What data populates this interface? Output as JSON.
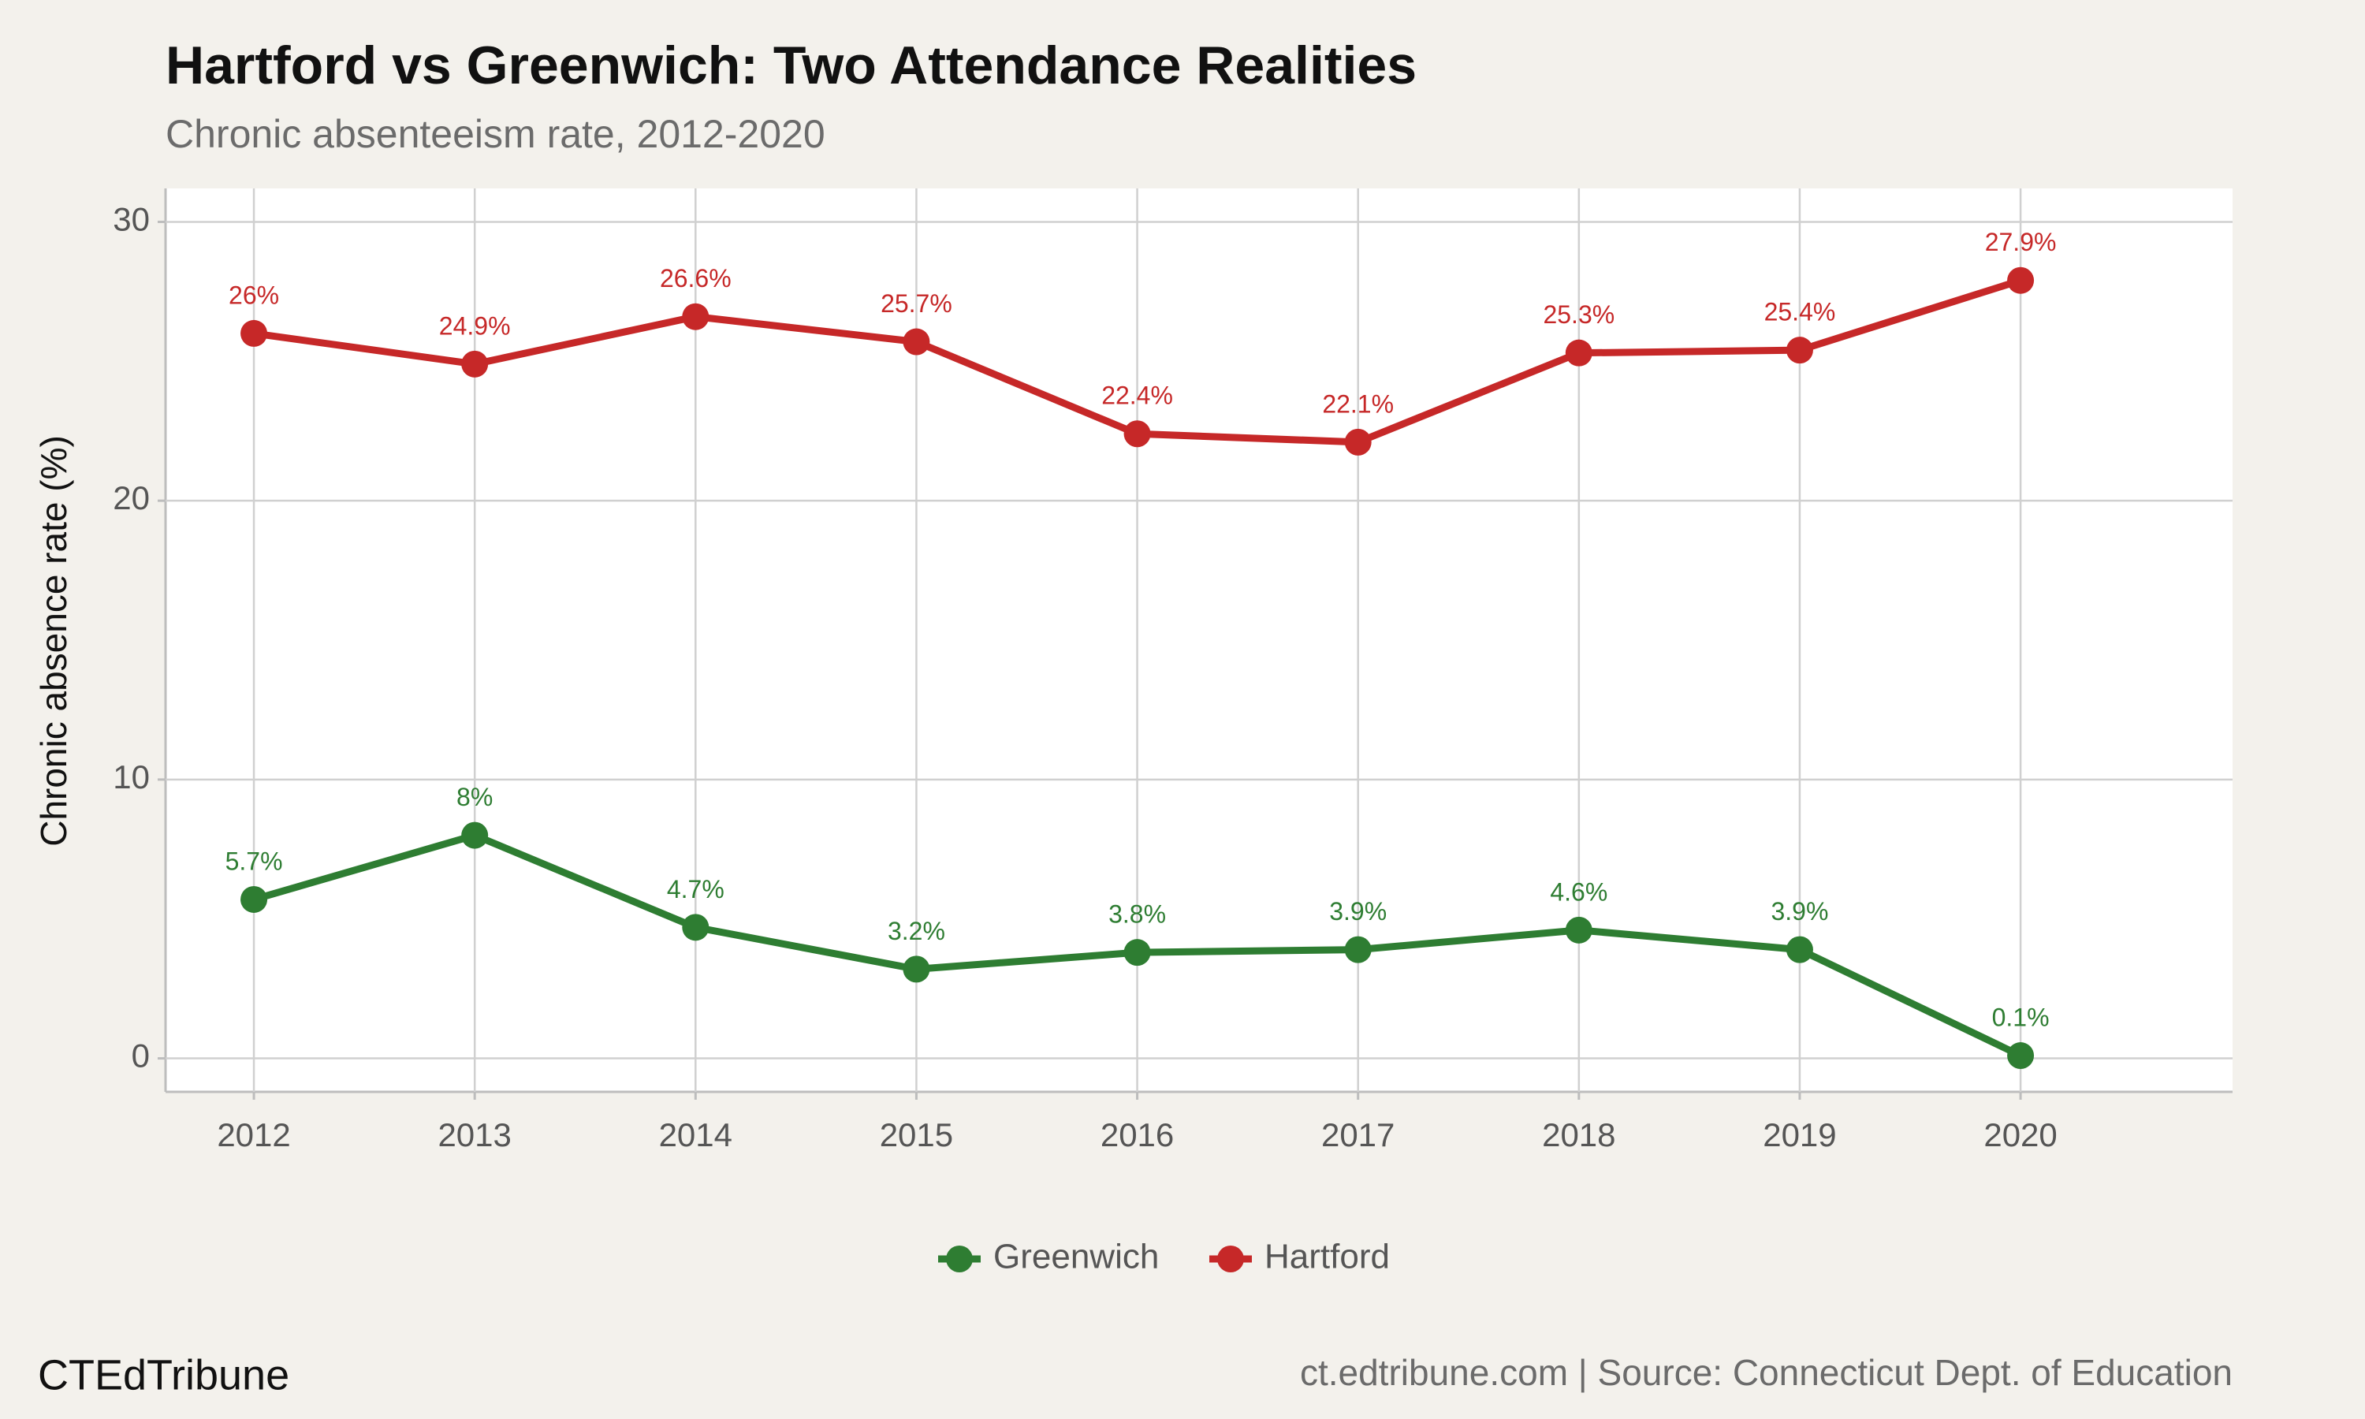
{
  "chart_data": {
    "type": "line",
    "title": "Hartford vs Greenwich: Two Attendance Realities",
    "subtitle": "Chronic absenteeism rate, 2012-2020",
    "y_label": "Chronic absence rate (%)",
    "x": [
      2012,
      2013,
      2014,
      2015,
      2016,
      2017,
      2018,
      2019,
      2020
    ],
    "series": [
      {
        "name": "Greenwich",
        "color": "#2e7d32",
        "values": [
          5.7,
          8,
          4.7,
          3.2,
          3.8,
          3.9,
          4.6,
          3.9,
          0.1
        ],
        "value_labels": [
          "5.7%",
          "8%",
          "4.7%",
          "3.2%",
          "3.8%",
          "3.9%",
          "4.6%",
          "3.9%",
          "0.1%"
        ]
      },
      {
        "name": "Hartford",
        "color": "#c62828",
        "values": [
          26,
          24.9,
          26.6,
          25.7,
          22.4,
          22.1,
          25.3,
          25.4,
          27.9
        ],
        "value_labels": [
          "26%",
          "24.9%",
          "26.6%",
          "25.7%",
          "22.4%",
          "22.1%",
          "25.3%",
          "25.4%",
          "27.9%"
        ]
      }
    ],
    "xlim": [
      2011.6,
      2020.96
    ],
    "xticks": [
      2012,
      2013,
      2014,
      2015,
      2016,
      2017,
      2018,
      2019,
      2020
    ],
    "ylim": [
      -1.2,
      31.2
    ],
    "yticks": [
      0,
      10,
      20,
      30
    ],
    "grid": true,
    "legend": "bottom",
    "source": "ct.edtribune.com | Source: Connecticut Dept. of Education",
    "brand": "CTEdTribune"
  }
}
